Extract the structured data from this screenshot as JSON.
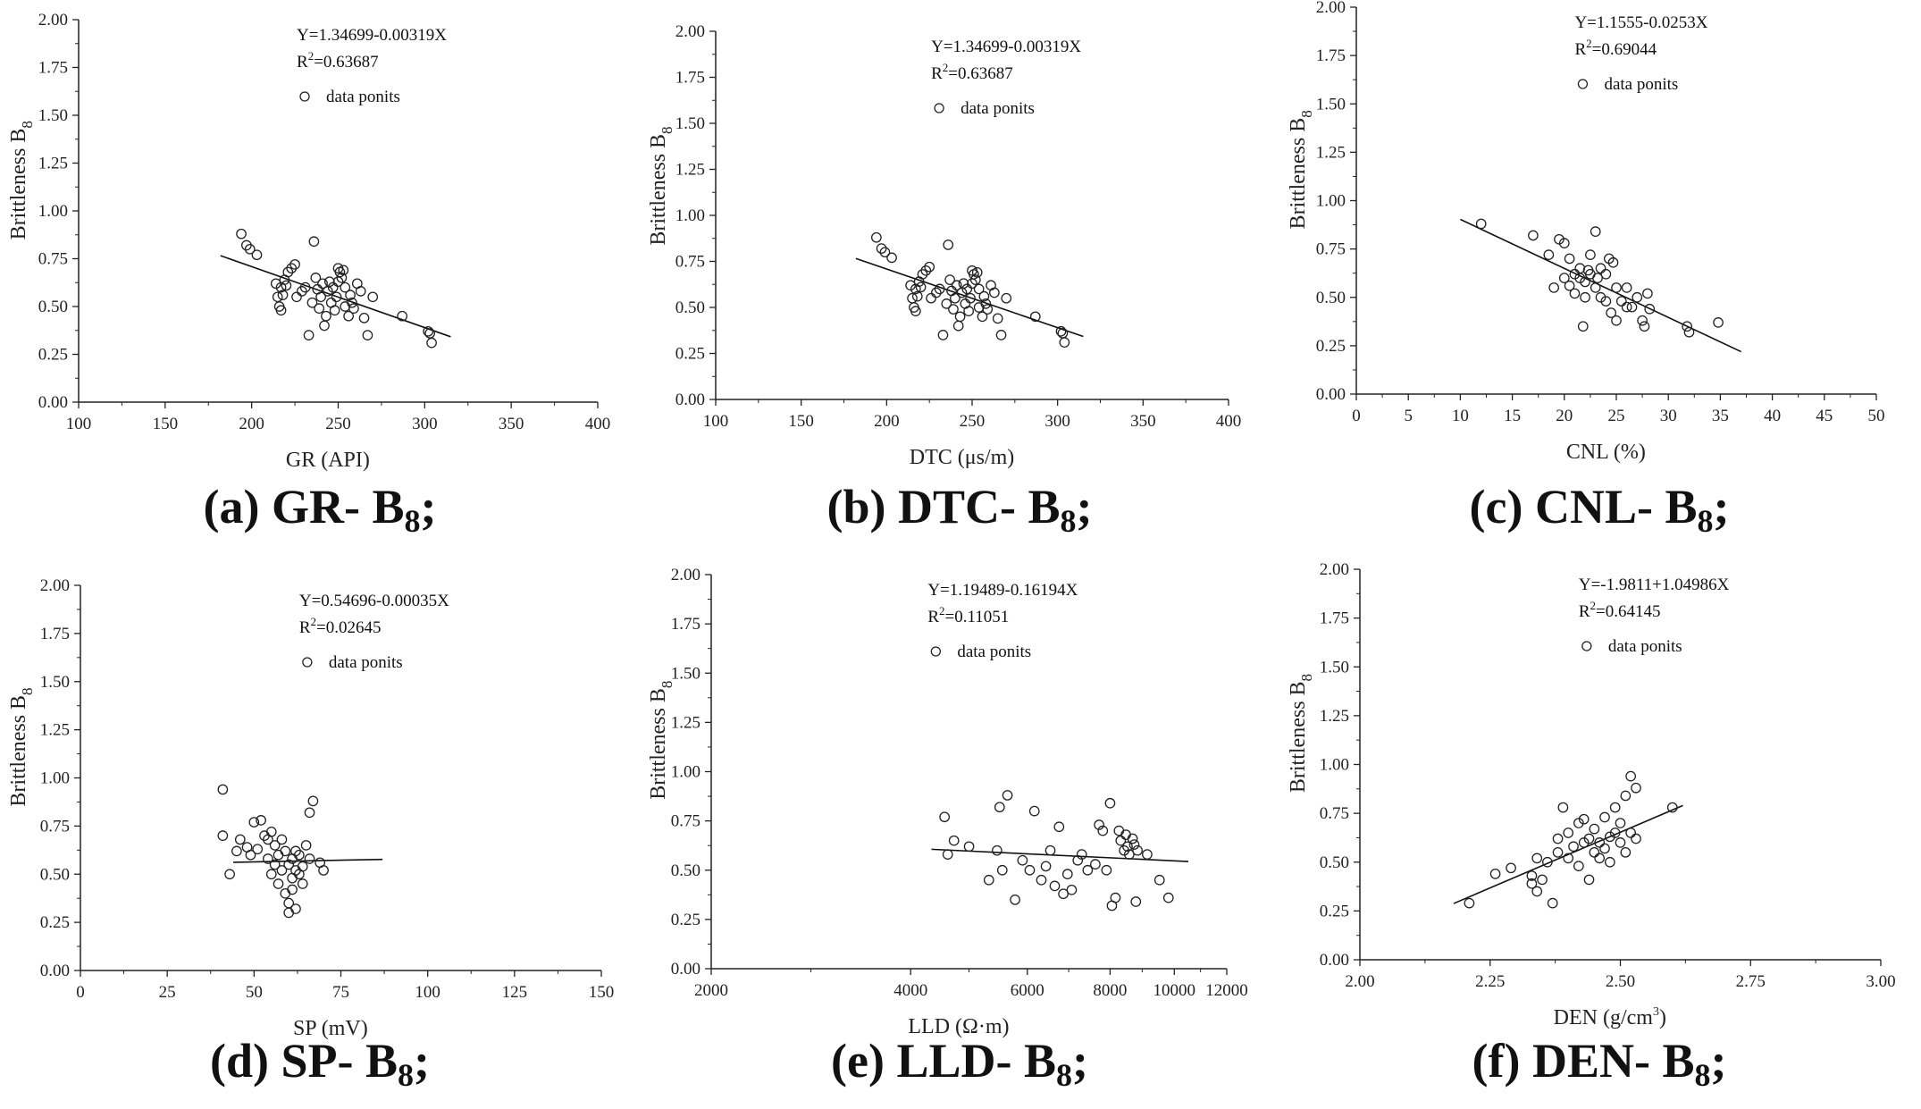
{
  "chart_data": [
    {
      "type": "scatter",
      "caption": "(a) GR- B",
      "caption_sub": "8",
      "caption_end": ";",
      "xlabel": "GR (API)",
      "ylabel": "Brittleness B",
      "ylabel_sub": "8",
      "xlim": [
        100,
        400
      ],
      "ylim": [
        0,
        2
      ],
      "xscale": "linear",
      "xticks": [
        100,
        150,
        200,
        250,
        300,
        350,
        400
      ],
      "yticks": [
        0.0,
        0.25,
        0.5,
        0.75,
        1.0,
        1.25,
        1.5,
        1.75,
        2.0
      ],
      "equation": "Y=1.34699-0.00319X",
      "r2_prefix": "R",
      "r2_sup": "2",
      "r2_value": "=0.63687",
      "legend_label": "data ponits",
      "fit_line": [
        [
          182,
          0.766
        ],
        [
          315,
          0.342
        ]
      ],
      "points": [
        [
          194,
          0.88
        ],
        [
          197,
          0.82
        ],
        [
          199,
          0.8
        ],
        [
          203,
          0.77
        ],
        [
          214,
          0.62
        ],
        [
          215,
          0.55
        ],
        [
          216,
          0.5
        ],
        [
          217,
          0.48
        ],
        [
          217,
          0.6
        ],
        [
          218,
          0.56
        ],
        [
          219,
          0.64
        ],
        [
          220,
          0.61
        ],
        [
          221,
          0.68
        ],
        [
          223,
          0.7
        ],
        [
          225,
          0.72
        ],
        [
          226,
          0.55
        ],
        [
          229,
          0.58
        ],
        [
          231,
          0.6
        ],
        [
          233,
          0.35
        ],
        [
          235,
          0.52
        ],
        [
          236,
          0.84
        ],
        [
          237,
          0.65
        ],
        [
          238,
          0.59
        ],
        [
          239,
          0.49
        ],
        [
          240,
          0.55
        ],
        [
          241,
          0.62
        ],
        [
          242,
          0.4
        ],
        [
          243,
          0.45
        ],
        [
          244,
          0.58
        ],
        [
          245,
          0.63
        ],
        [
          246,
          0.52
        ],
        [
          247,
          0.6
        ],
        [
          248,
          0.48
        ],
        [
          249,
          0.55
        ],
        [
          250,
          0.63
        ],
        [
          250,
          0.7
        ],
        [
          251,
          0.68
        ],
        [
          252,
          0.65
        ],
        [
          253,
          0.69
        ],
        [
          254,
          0.6
        ],
        [
          254,
          0.5
        ],
        [
          256,
          0.45
        ],
        [
          257,
          0.56
        ],
        [
          258,
          0.52
        ],
        [
          259,
          0.49
        ],
        [
          261,
          0.62
        ],
        [
          263,
          0.58
        ],
        [
          265,
          0.44
        ],
        [
          267,
          0.35
        ],
        [
          270,
          0.55
        ],
        [
          287,
          0.45
        ],
        [
          302,
          0.37
        ],
        [
          303,
          0.36
        ],
        [
          304,
          0.31
        ]
      ]
    },
    {
      "type": "scatter",
      "caption": "(b) DTC- B",
      "caption_sub": "8",
      "caption_end": ";",
      "xlabel": "DTC (μs/m)",
      "ylabel": "Brittleness B",
      "ylabel_sub": "8",
      "xlim": [
        100,
        400
      ],
      "ylim": [
        0,
        2
      ],
      "xscale": "linear",
      "xticks": [
        100,
        150,
        200,
        250,
        300,
        350,
        400
      ],
      "yticks": [
        0.0,
        0.25,
        0.5,
        0.75,
        1.0,
        1.25,
        1.5,
        1.75,
        2.0
      ],
      "equation": "Y=1.34699-0.00319X",
      "r2_prefix": "R",
      "r2_sup": "2",
      "r2_value": "=0.63687",
      "legend_label": "data ponits",
      "fit_line": [
        [
          182,
          0.766
        ],
        [
          315,
          0.342
        ]
      ],
      "points": [
        [
          194,
          0.88
        ],
        [
          197,
          0.82
        ],
        [
          199,
          0.8
        ],
        [
          203,
          0.77
        ],
        [
          214,
          0.62
        ],
        [
          215,
          0.55
        ],
        [
          216,
          0.5
        ],
        [
          217,
          0.48
        ],
        [
          217,
          0.6
        ],
        [
          218,
          0.56
        ],
        [
          219,
          0.64
        ],
        [
          220,
          0.61
        ],
        [
          221,
          0.68
        ],
        [
          223,
          0.7
        ],
        [
          225,
          0.72
        ],
        [
          226,
          0.55
        ],
        [
          229,
          0.58
        ],
        [
          231,
          0.6
        ],
        [
          233,
          0.35
        ],
        [
          235,
          0.52
        ],
        [
          236,
          0.84
        ],
        [
          237,
          0.65
        ],
        [
          238,
          0.59
        ],
        [
          239,
          0.49
        ],
        [
          240,
          0.55
        ],
        [
          241,
          0.62
        ],
        [
          242,
          0.4
        ],
        [
          243,
          0.45
        ],
        [
          244,
          0.58
        ],
        [
          245,
          0.63
        ],
        [
          246,
          0.52
        ],
        [
          247,
          0.6
        ],
        [
          248,
          0.48
        ],
        [
          249,
          0.55
        ],
        [
          250,
          0.63
        ],
        [
          250,
          0.7
        ],
        [
          251,
          0.68
        ],
        [
          252,
          0.65
        ],
        [
          253,
          0.69
        ],
        [
          254,
          0.6
        ],
        [
          254,
          0.5
        ],
        [
          256,
          0.45
        ],
        [
          257,
          0.56
        ],
        [
          258,
          0.52
        ],
        [
          259,
          0.49
        ],
        [
          261,
          0.62
        ],
        [
          263,
          0.58
        ],
        [
          265,
          0.44
        ],
        [
          267,
          0.35
        ],
        [
          270,
          0.55
        ],
        [
          287,
          0.45
        ],
        [
          302,
          0.37
        ],
        [
          303,
          0.36
        ],
        [
          304,
          0.31
        ]
      ]
    },
    {
      "type": "scatter",
      "caption": "(c) CNL- B",
      "caption_sub": "8",
      "caption_end": ";",
      "xlabel": "CNL (%)",
      "ylabel": "Brittleness B",
      "ylabel_sub": "8",
      "xlim": [
        0,
        50
      ],
      "ylim": [
        0,
        2
      ],
      "xscale": "linear",
      "xticks": [
        0,
        5,
        10,
        15,
        20,
        25,
        30,
        35,
        40,
        45,
        50
      ],
      "yticks": [
        0.0,
        0.25,
        0.5,
        0.75,
        1.0,
        1.25,
        1.5,
        1.75,
        2.0
      ],
      "equation": "Y=1.1555-0.0253X",
      "r2_prefix": "R",
      "r2_sup": "2",
      "r2_value": "=0.69044",
      "legend_label": "data ponits",
      "fit_line": [
        [
          10,
          0.903
        ],
        [
          37,
          0.219
        ]
      ],
      "points": [
        [
          12,
          0.88
        ],
        [
          17,
          0.82
        ],
        [
          18.5,
          0.72
        ],
        [
          19,
          0.55
        ],
        [
          19.5,
          0.8
        ],
        [
          20,
          0.78
        ],
        [
          20,
          0.6
        ],
        [
          20.5,
          0.7
        ],
        [
          20.5,
          0.56
        ],
        [
          21,
          0.62
        ],
        [
          21,
          0.52
        ],
        [
          21.5,
          0.65
        ],
        [
          21.5,
          0.6
        ],
        [
          21.8,
          0.35
        ],
        [
          22,
          0.58
        ],
        [
          22,
          0.5
        ],
        [
          22.3,
          0.64
        ],
        [
          22.5,
          0.72
        ],
        [
          22.5,
          0.62
        ],
        [
          23,
          0.84
        ],
        [
          23,
          0.55
        ],
        [
          23.2,
          0.6
        ],
        [
          23.5,
          0.65
        ],
        [
          23.5,
          0.5
        ],
        [
          24,
          0.48
        ],
        [
          24,
          0.62
        ],
        [
          24.3,
          0.7
        ],
        [
          24.5,
          0.42
        ],
        [
          24.7,
          0.68
        ],
        [
          25,
          0.55
        ],
        [
          25,
          0.38
        ],
        [
          25.5,
          0.48
        ],
        [
          26,
          0.45
        ],
        [
          26,
          0.55
        ],
        [
          26.5,
          0.45
        ],
        [
          27,
          0.5
        ],
        [
          27.5,
          0.38
        ],
        [
          27.7,
          0.35
        ],
        [
          28,
          0.52
        ],
        [
          28.2,
          0.44
        ],
        [
          31.8,
          0.35
        ],
        [
          32,
          0.32
        ],
        [
          34.8,
          0.37
        ]
      ]
    },
    {
      "type": "scatter",
      "caption": "(d) SP- B",
      "caption_sub": "8",
      "caption_end": ";",
      "xlabel": "SP (mV)",
      "ylabel": "Brittleness B",
      "ylabel_sub": "8",
      "xlim": [
        0,
        150
      ],
      "ylim": [
        0,
        2
      ],
      "xscale": "linear",
      "xticks": [
        0,
        25,
        50,
        75,
        100,
        125,
        150
      ],
      "yticks": [
        0.0,
        0.25,
        0.5,
        0.75,
        1.0,
        1.25,
        1.5,
        1.75,
        2.0
      ],
      "equation": "Y=0.54696-0.00035X",
      "r2_prefix": "R",
      "r2_sup": "2",
      "r2_value": "=0.02645",
      "legend_label": "data ponits",
      "fit_line": [
        [
          44,
          0.562
        ],
        [
          87,
          0.577
        ]
      ],
      "points": [
        [
          41,
          0.94
        ],
        [
          41,
          0.7
        ],
        [
          43,
          0.5
        ],
        [
          45,
          0.62
        ],
        [
          46,
          0.68
        ],
        [
          48,
          0.64
        ],
        [
          49,
          0.6
        ],
        [
          50,
          0.77
        ],
        [
          51,
          0.63
        ],
        [
          52,
          0.78
        ],
        [
          53,
          0.7
        ],
        [
          54,
          0.68
        ],
        [
          54,
          0.58
        ],
        [
          55,
          0.72
        ],
        [
          55,
          0.5
        ],
        [
          56,
          0.65
        ],
        [
          56,
          0.55
        ],
        [
          57,
          0.6
        ],
        [
          57,
          0.45
        ],
        [
          58,
          0.68
        ],
        [
          58,
          0.52
        ],
        [
          59,
          0.62
        ],
        [
          59,
          0.4
        ],
        [
          60,
          0.55
        ],
        [
          60,
          0.35
        ],
        [
          60,
          0.3
        ],
        [
          61,
          0.48
        ],
        [
          61,
          0.58
        ],
        [
          61,
          0.42
        ],
        [
          62,
          0.32
        ],
        [
          62,
          0.52
        ],
        [
          62,
          0.62
        ],
        [
          63,
          0.5
        ],
        [
          63,
          0.6
        ],
        [
          64,
          0.54
        ],
        [
          64,
          0.45
        ],
        [
          65,
          0.65
        ],
        [
          66,
          0.58
        ],
        [
          66,
          0.82
        ],
        [
          67,
          0.88
        ],
        [
          69,
          0.56
        ],
        [
          70,
          0.52
        ]
      ]
    },
    {
      "type": "scatter",
      "caption": "(e) LLD- B",
      "caption_sub": "8",
      "caption_end": ";",
      "xlabel": "LLD (Ω·m)",
      "ylabel": "Brittleness B",
      "ylabel_sub": "8",
      "xlim": [
        2000,
        12000
      ],
      "ylim": [
        0,
        2
      ],
      "xscale": "log",
      "xticks": [
        2000,
        4000,
        6000,
        8000,
        10000,
        12000
      ],
      "yticks": [
        0.0,
        0.25,
        0.5,
        0.75,
        1.0,
        1.25,
        1.5,
        1.75,
        2.0
      ],
      "equation": "Y=1.19489-0.16194X",
      "r2_prefix": "R",
      "r2_sup": "2",
      "r2_value": "=0.11051",
      "legend_label": "data ponits",
      "fit_line": [
        [
          4300,
          0.606
        ],
        [
          10500,
          0.544
        ]
      ],
      "points": [
        [
          4500,
          0.77
        ],
        [
          4550,
          0.58
        ],
        [
          4650,
          0.65
        ],
        [
          4900,
          0.62
        ],
        [
          5250,
          0.45
        ],
        [
          5400,
          0.6
        ],
        [
          5450,
          0.82
        ],
        [
          5500,
          0.5
        ],
        [
          5600,
          0.88
        ],
        [
          5750,
          0.35
        ],
        [
          5900,
          0.55
        ],
        [
          6050,
          0.5
        ],
        [
          6150,
          0.8
        ],
        [
          6300,
          0.45
        ],
        [
          6400,
          0.52
        ],
        [
          6500,
          0.6
        ],
        [
          6600,
          0.42
        ],
        [
          6700,
          0.72
        ],
        [
          6800,
          0.38
        ],
        [
          6900,
          0.48
        ],
        [
          7000,
          0.4
        ],
        [
          7150,
          0.55
        ],
        [
          7250,
          0.58
        ],
        [
          7400,
          0.5
        ],
        [
          7600,
          0.53
        ],
        [
          7700,
          0.73
        ],
        [
          7800,
          0.7
        ],
        [
          7900,
          0.5
        ],
        [
          8000,
          0.84
        ],
        [
          8050,
          0.32
        ],
        [
          8150,
          0.36
        ],
        [
          8250,
          0.7
        ],
        [
          8300,
          0.65
        ],
        [
          8400,
          0.6
        ],
        [
          8450,
          0.68
        ],
        [
          8500,
          0.62
        ],
        [
          8550,
          0.58
        ],
        [
          8650,
          0.66
        ],
        [
          8700,
          0.63
        ],
        [
          8750,
          0.34
        ],
        [
          8800,
          0.6
        ],
        [
          9100,
          0.58
        ],
        [
          9500,
          0.45
        ],
        [
          9800,
          0.36
        ]
      ]
    },
    {
      "type": "scatter",
      "caption": "(f) DEN- B",
      "caption_sub": "8",
      "caption_end": ";",
      "xlabel": "DEN (g/cm",
      "xlabel_sup": "3",
      "xlabel_end": ")",
      "ylabel": "Brittleness B",
      "ylabel_sub": "8",
      "xlim": [
        2.0,
        3.0
      ],
      "ylim": [
        0,
        2
      ],
      "xscale": "linear",
      "xticks": [
        2.0,
        2.25,
        2.5,
        2.75,
        3.0
      ],
      "yticks": [
        0.0,
        0.25,
        0.5,
        0.75,
        1.0,
        1.25,
        1.5,
        1.75,
        2.0
      ],
      "equation": "Y=-1.9811+1.04986X",
      "r2_prefix": "R",
      "r2_sup": "2",
      "r2_value": "=0.64145",
      "legend_label": "data ponits",
      "fit_line": [
        [
          2.18,
          0.288
        ],
        [
          2.62,
          0.79
        ]
      ],
      "points": [
        [
          2.21,
          0.29
        ],
        [
          2.26,
          0.44
        ],
        [
          2.29,
          0.47
        ],
        [
          2.33,
          0.43
        ],
        [
          2.33,
          0.39
        ],
        [
          2.34,
          0.35
        ],
        [
          2.34,
          0.52
        ],
        [
          2.35,
          0.41
        ],
        [
          2.36,
          0.5
        ],
        [
          2.37,
          0.29
        ],
        [
          2.38,
          0.55
        ],
        [
          2.38,
          0.62
        ],
        [
          2.39,
          0.78
        ],
        [
          2.4,
          0.65
        ],
        [
          2.4,
          0.52
        ],
        [
          2.41,
          0.58
        ],
        [
          2.42,
          0.7
        ],
        [
          2.42,
          0.48
        ],
        [
          2.43,
          0.6
        ],
        [
          2.43,
          0.72
        ],
        [
          2.44,
          0.62
        ],
        [
          2.44,
          0.41
        ],
        [
          2.45,
          0.55
        ],
        [
          2.45,
          0.67
        ],
        [
          2.46,
          0.52
        ],
        [
          2.46,
          0.6
        ],
        [
          2.47,
          0.57
        ],
        [
          2.47,
          0.73
        ],
        [
          2.48,
          0.63
        ],
        [
          2.48,
          0.5
        ],
        [
          2.49,
          0.78
        ],
        [
          2.49,
          0.65
        ],
        [
          2.5,
          0.7
        ],
        [
          2.5,
          0.6
        ],
        [
          2.51,
          0.84
        ],
        [
          2.51,
          0.55
        ],
        [
          2.52,
          0.65
        ],
        [
          2.52,
          0.94
        ],
        [
          2.53,
          0.62
        ],
        [
          2.53,
          0.88
        ],
        [
          2.6,
          0.78
        ]
      ]
    }
  ]
}
